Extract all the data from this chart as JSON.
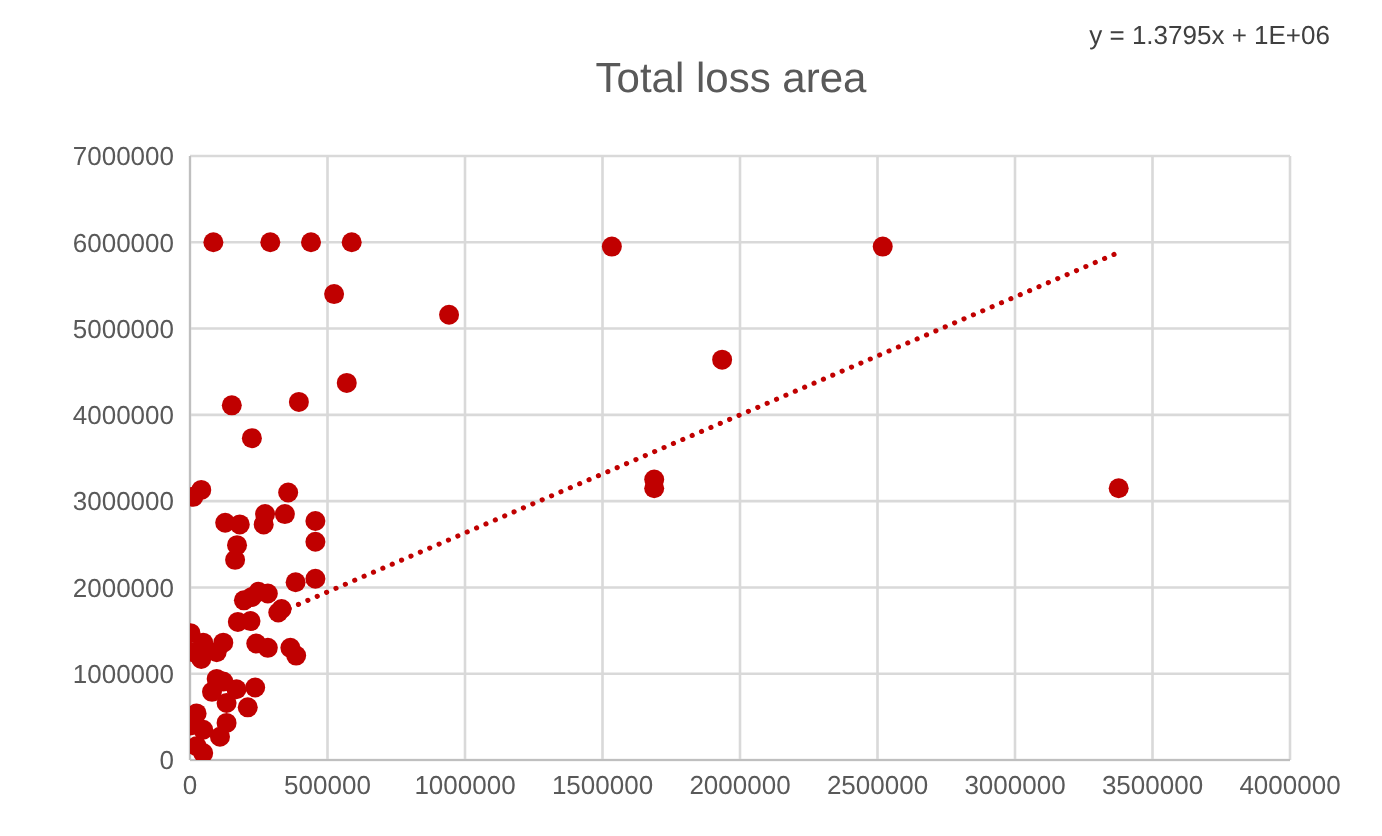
{
  "chart_data": {
    "type": "scatter",
    "title": "Total loss area",
    "annotations": [
      "y = 1.3795x + 1E+06"
    ],
    "xlim": [
      0,
      4000000
    ],
    "xticks": [
      0,
      500000,
      1000000,
      1500000,
      2000000,
      2500000,
      3000000,
      3500000,
      4000000
    ],
    "ylim": [
      0,
      7000000
    ],
    "yticks": [
      0,
      1000000,
      2000000,
      3000000,
      4000000,
      5000000,
      6000000,
      7000000
    ],
    "grid": true,
    "marker": "circle",
    "series": [
      {
        "color": "#c00000",
        "x": [
          85000,
          292000,
          440000,
          588000,
          1534000,
          2519000,
          1935000,
          1688000,
          1688000,
          3377000,
          524000,
          942000,
          152000,
          396000,
          225000,
          570000,
          12000,
          41000,
          357000,
          128000,
          181000,
          273000,
          268000,
          345000,
          456000,
          456000,
          171000,
          164000,
          384000,
          456000,
          196000,
          225000,
          249000,
          283000,
          321000,
          333000,
          174000,
          220000,
          2000,
          12000,
          48000,
          41000,
          97000,
          121000,
          241000,
          283000,
          365000,
          386000,
          97000,
          121000,
          169000,
          80000,
          237000,
          133000,
          210000,
          24000,
          133000,
          0,
          48000,
          109000,
          24000,
          48000
        ],
        "values": [
          6000000,
          6000000,
          6000000,
          6000000,
          5950000,
          5950000,
          4640000,
          3250000,
          3150000,
          3150000,
          5400000,
          5160000,
          4110000,
          4150000,
          3730000,
          4370000,
          3050000,
          3130000,
          3100000,
          2750000,
          2730000,
          2850000,
          2730000,
          2850000,
          2770000,
          2530000,
          2490000,
          2320000,
          2060000,
          2100000,
          1850000,
          1890000,
          1950000,
          1930000,
          1710000,
          1750000,
          1600000,
          1610000,
          1470000,
          1250000,
          1360000,
          1170000,
          1250000,
          1360000,
          1350000,
          1300000,
          1300000,
          1210000,
          940000,
          910000,
          820000,
          790000,
          840000,
          660000,
          610000,
          540000,
          430000,
          400000,
          350000,
          270000,
          160000,
          80000
        ]
      },
      {
        "type": "line",
        "color": "#c00000",
        "line_style": "dotted",
        "marker": "none",
        "x": [
          326000,
          3390000
        ],
        "values": [
          1710000,
          5900000
        ]
      }
    ]
  }
}
